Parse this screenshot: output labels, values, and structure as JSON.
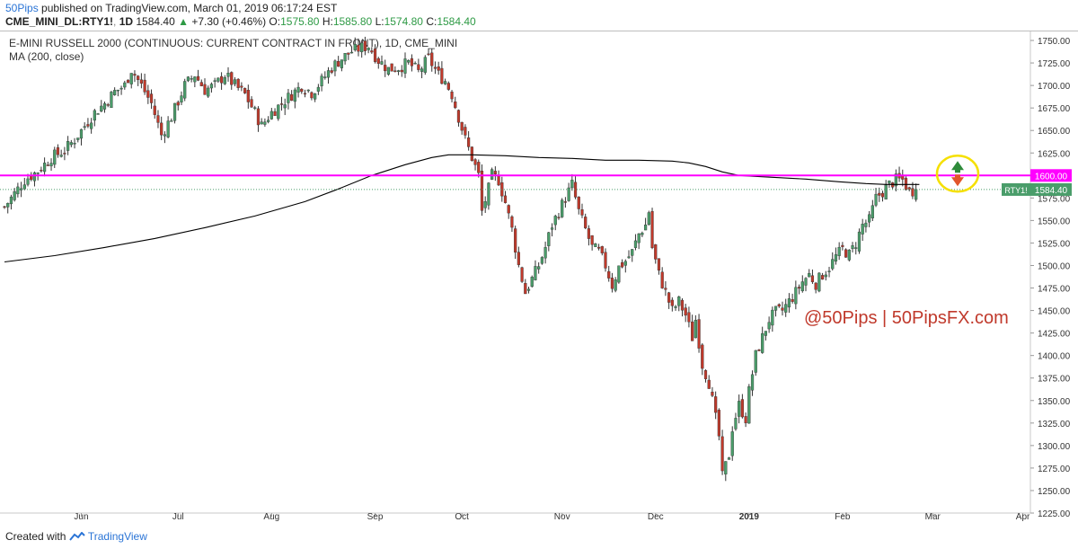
{
  "header": {
    "publisher": "50Pips",
    "published_text": "published on TradingView.com, March 01, 2019 06:17:24 EST",
    "symbol": "CME_MINI_DL:RTY1!",
    "interval": "1D",
    "last_price": "1584.40",
    "change": "+7.30 (+0.46%)",
    "open_label": "O:",
    "open": "1575.80",
    "high_label": "H:",
    "high": "1585.80",
    "low_label": "L:",
    "low": "1574.80",
    "close_label": "C:",
    "close": "1584.40"
  },
  "footer": {
    "created_with": "Created with",
    "brand": "TradingView"
  },
  "colors": {
    "bull": "#4a9d6a",
    "bear": "#c0392b",
    "ma": "#000000",
    "level": "#ff00ff",
    "ring": "#f5e000",
    "brand": "#2a74d6"
  },
  "chart_data": {
    "type": "candlestick",
    "title": "E-MINI RUSSELL 2000 (CONTINUOUS: CURRENT CONTRACT IN FRONT), 1D, CME_MINI",
    "indicator_label": "MA (200, close)",
    "watermark": "@50Pips | 50PipsFX.com",
    "ylim": [
      1225,
      1760
    ],
    "y_ticks": [
      1750,
      1725,
      1700,
      1675,
      1650,
      1625,
      1600,
      1575,
      1550,
      1525,
      1500,
      1475,
      1450,
      1425,
      1400,
      1375,
      1350,
      1325,
      1300,
      1275,
      1250,
      1225
    ],
    "y_tick_labels": [
      "1750.00",
      "1725.00",
      "1700.00",
      "1675.00",
      "1650.00",
      "1625.00",
      "1600.00",
      "1575.00",
      "1550.00",
      "1525.00",
      "1500.00",
      "1475.00",
      "1450.00",
      "1425.00",
      "1400.00",
      "1375.00",
      "1350.00",
      "1325.00",
      "1300.00",
      "1275.00",
      "1250.00",
      "1225.00"
    ],
    "x_range": [
      0,
      300
    ],
    "x_ticks": [
      {
        "x": 23,
        "label": "Jun",
        "bold": false
      },
      {
        "x": 52,
        "label": "Jul",
        "bold": false
      },
      {
        "x": 80,
        "label": "Aug",
        "bold": false
      },
      {
        "x": 111,
        "label": "Sep",
        "bold": false
      },
      {
        "x": 137,
        "label": "Oct",
        "bold": false
      },
      {
        "x": 167,
        "label": "Nov",
        "bold": false
      },
      {
        "x": 195,
        "label": "Dec",
        "bold": false
      },
      {
        "x": 223,
        "label": "2019",
        "bold": true
      },
      {
        "x": 251,
        "label": "Feb",
        "bold": false
      },
      {
        "x": 278,
        "label": "Mar",
        "bold": false
      },
      {
        "x": 305,
        "label": "Apr",
        "bold": false
      }
    ],
    "resistance": {
      "value": 1600,
      "label": "1600.00"
    },
    "last_price": {
      "value": 1584.4,
      "symbol": "RTY1!",
      "label": "1584.40"
    },
    "close_path": [
      [
        0,
        1565
      ],
      [
        6,
        1595
      ],
      [
        10,
        1605
      ],
      [
        14,
        1620
      ],
      [
        18,
        1628
      ],
      [
        21,
        1640
      ],
      [
        24,
        1655
      ],
      [
        27,
        1670
      ],
      [
        30,
        1680
      ],
      [
        33,
        1693
      ],
      [
        36,
        1700
      ],
      [
        38,
        1718
      ],
      [
        41,
        1700
      ],
      [
        44,
        1680
      ],
      [
        47,
        1645
      ],
      [
        50,
        1665
      ],
      [
        54,
        1700
      ],
      [
        57,
        1712
      ],
      [
        60,
        1695
      ],
      [
        63,
        1700
      ],
      [
        66,
        1712
      ],
      [
        69,
        1700
      ],
      [
        72,
        1690
      ],
      [
        75,
        1670
      ],
      [
        77,
        1655
      ],
      [
        80,
        1670
      ],
      [
        83,
        1680
      ],
      [
        86,
        1690
      ],
      [
        89,
        1700
      ],
      [
        92,
        1692
      ],
      [
        95,
        1705
      ],
      [
        98,
        1720
      ],
      [
        101,
        1730
      ],
      [
        104,
        1738
      ],
      [
        107,
        1742
      ],
      [
        109,
        1744
      ],
      [
        112,
        1728
      ],
      [
        115,
        1718
      ],
      [
        118,
        1720
      ],
      [
        121,
        1725
      ],
      [
        124,
        1715
      ],
      [
        127,
        1730
      ],
      [
        130,
        1712
      ],
      [
        132,
        1705
      ],
      [
        134,
        1690
      ],
      [
        136,
        1665
      ],
      [
        138,
        1640
      ],
      [
        140,
        1620
      ],
      [
        142,
        1600
      ],
      [
        143,
        1560
      ],
      [
        145,
        1585
      ],
      [
        146,
        1600
      ],
      [
        148,
        1595
      ],
      [
        150,
        1570
      ],
      [
        152,
        1540
      ],
      [
        154,
        1500
      ],
      [
        156,
        1470
      ],
      [
        158,
        1485
      ],
      [
        160,
        1500
      ],
      [
        162,
        1520
      ],
      [
        164,
        1545
      ],
      [
        166,
        1560
      ],
      [
        168,
        1575
      ],
      [
        170,
        1590
      ],
      [
        172,
        1560
      ],
      [
        174,
        1540
      ],
      [
        176,
        1520
      ],
      [
        178,
        1515
      ],
      [
        180,
        1500
      ],
      [
        182,
        1478
      ],
      [
        184,
        1498
      ],
      [
        186,
        1505
      ],
      [
        188,
        1515
      ],
      [
        190,
        1535
      ],
      [
        192,
        1545
      ],
      [
        193,
        1560
      ],
      [
        194,
        1520
      ],
      [
        196,
        1490
      ],
      [
        198,
        1470
      ],
      [
        200,
        1450
      ],
      [
        202,
        1460
      ],
      [
        204,
        1445
      ],
      [
        206,
        1420
      ],
      [
        207,
        1440
      ],
      [
        209,
        1390
      ],
      [
        211,
        1370
      ],
      [
        213,
        1330
      ],
      [
        214,
        1310
      ],
      [
        215,
        1265
      ],
      [
        217,
        1290
      ],
      [
        218,
        1320
      ],
      [
        220,
        1345
      ],
      [
        222,
        1330
      ],
      [
        223,
        1360
      ],
      [
        225,
        1400
      ],
      [
        227,
        1420
      ],
      [
        229,
        1440
      ],
      [
        231,
        1448
      ],
      [
        233,
        1450
      ],
      [
        235,
        1460
      ],
      [
        237,
        1470
      ],
      [
        239,
        1482
      ],
      [
        241,
        1490
      ],
      [
        243,
        1480
      ],
      [
        245,
        1490
      ],
      [
        247,
        1498
      ],
      [
        249,
        1510
      ],
      [
        251,
        1518
      ],
      [
        253,
        1512
      ],
      [
        255,
        1525
      ],
      [
        257,
        1545
      ],
      [
        259,
        1550
      ],
      [
        261,
        1575
      ],
      [
        263,
        1582
      ],
      [
        265,
        1590
      ],
      [
        267,
        1595
      ],
      [
        269,
        1595
      ],
      [
        271,
        1582
      ],
      [
        273,
        1584.4
      ]
    ],
    "ma_200": [
      [
        0,
        1504
      ],
      [
        15,
        1511
      ],
      [
        30,
        1520
      ],
      [
        45,
        1530
      ],
      [
        60,
        1542
      ],
      [
        75,
        1555
      ],
      [
        90,
        1571
      ],
      [
        100,
        1585
      ],
      [
        110,
        1600
      ],
      [
        120,
        1612
      ],
      [
        128,
        1620
      ],
      [
        133,
        1623
      ],
      [
        140,
        1623
      ],
      [
        150,
        1622
      ],
      [
        160,
        1620
      ],
      [
        170,
        1619
      ],
      [
        180,
        1617
      ],
      [
        190,
        1617
      ],
      [
        200,
        1616
      ],
      [
        205,
        1614
      ],
      [
        210,
        1610
      ],
      [
        215,
        1604
      ],
      [
        220,
        1600
      ],
      [
        230,
        1598
      ],
      [
        240,
        1596
      ],
      [
        250,
        1593
      ],
      [
        258,
        1591
      ],
      [
        264,
        1590
      ],
      [
        270,
        1590
      ],
      [
        274,
        1590
      ]
    ]
  }
}
